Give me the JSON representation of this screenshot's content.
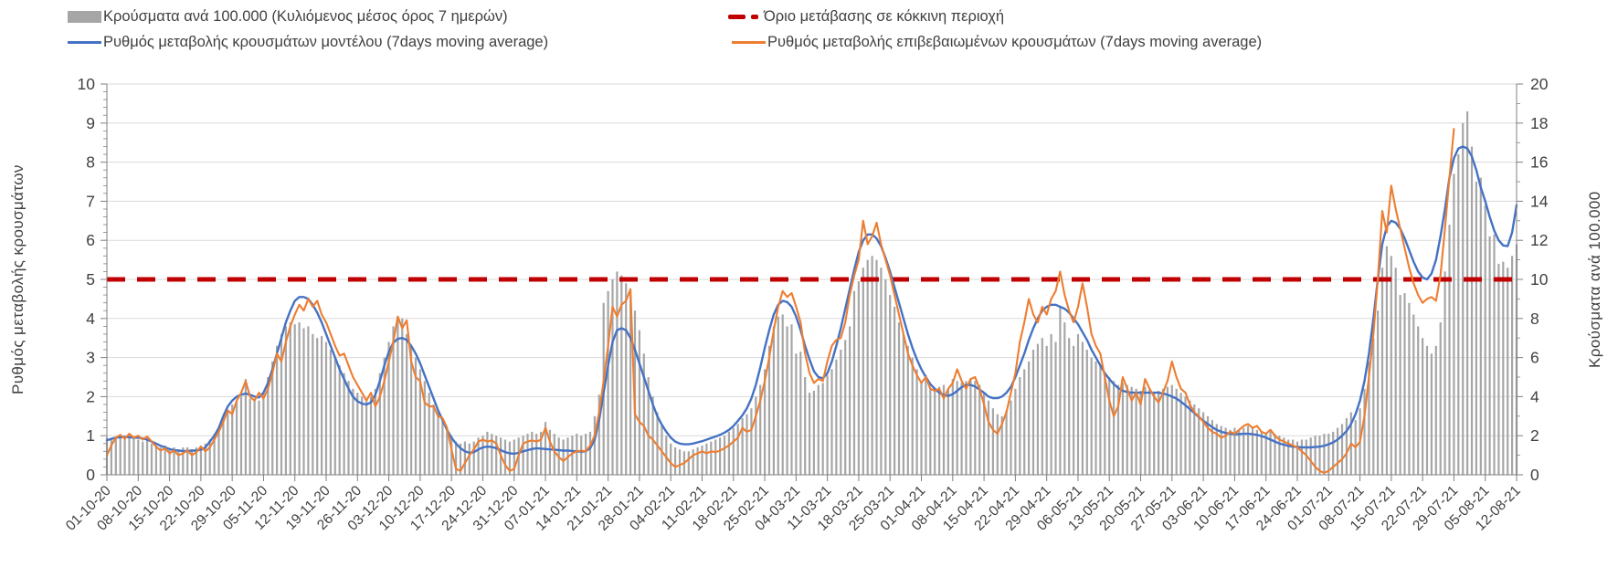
{
  "legend": {
    "items": [
      {
        "label": "Κρούσματα ανά 100.000 (Κυλιόμενος μέσος όρος 7 ημερών)",
        "swatch": "bar",
        "color": "#a6a6a6"
      },
      {
        "label": "Όριο μετάβασης σε κόκκινη περιοχή",
        "swatch": "dashed-line",
        "color": "#c00000"
      },
      {
        "label": "Ρυθμός μεταβολής κρουσμάτων μοντέλου (7days moving average)",
        "swatch": "line",
        "color": "#4472c4"
      },
      {
        "label": "Ρυθμός μεταβολής επιβεβαιωμένων κρουσμάτων (7days moving average)",
        "swatch": "line",
        "color": "#ed7d31"
      }
    ]
  },
  "chart_data": {
    "type": "combo bar+line, daily data 01-10-20 to 12-08-21",
    "grid": "horizontal gridlines at every left-axis integer, color #d9d9d9",
    "left_axis": {
      "title": "Ρυθμός μεταβολής κρουσμάτων",
      "min": 0,
      "max": 10,
      "tick_step": 1
    },
    "right_axis": {
      "title": "Κρούσματα ανά 100.000",
      "min": 0,
      "max": 20,
      "tick_step": 2
    },
    "threshold": {
      "label": "Όριο μετάβασης σε κόκκινη περιοχή",
      "value_left_axis": 5,
      "color": "#c00000"
    },
    "days_per_tick": 7,
    "x_tick_labels": [
      "01-10-20",
      "08-10-20",
      "15-10-20",
      "22-10-20",
      "29-10-20",
      "05-11-20",
      "12-11-20",
      "19-11-20",
      "26-11-20",
      "03-12-20",
      "10-12-20",
      "17-12-20",
      "24-12-20",
      "31-12-20",
      "07-01-21",
      "14-01-21",
      "21-01-21",
      "28-01-21",
      "04-02-21",
      "11-02-21",
      "18-02-21",
      "25-02-21",
      "04-03-21",
      "11-03-21",
      "18-03-21",
      "25-03-21",
      "01-04-21",
      "08-04-21",
      "15-04-21",
      "22-04-21",
      "29-04-21",
      "06-05-21",
      "13-05-21",
      "20-05-21",
      "27-05-21",
      "03-06-21",
      "10-06-21",
      "17-06-21",
      "24-06-21",
      "01-07-21",
      "08-07-21",
      "15-07-21",
      "22-07-21",
      "29-07-21",
      "05-08-21",
      "12-08-21"
    ],
    "series": [
      {
        "name": "Κρούσματα ανά 100.000 (Κυλιόμενος μέσος όρος 7 ημερών)",
        "type": "bar",
        "axis": "right",
        "color": "#a6a6a6",
        "values": [
          1.9,
          1.8,
          1.9,
          2.0,
          1.9,
          2.0,
          1.9,
          1.8,
          1.7,
          1.8,
          1.6,
          1.5,
          1.4,
          1.5,
          1.3,
          1.4,
          1.3,
          1.4,
          1.4,
          1.3,
          1.4,
          1.5,
          1.6,
          1.8,
          2.1,
          2.4,
          2.9,
          3.3,
          3.6,
          3.8,
          4.0,
          4.9,
          3.9,
          3.8,
          3.8,
          4.2,
          5.0,
          5.8,
          6.6,
          7.2,
          7.6,
          7.8,
          7.7,
          7.8,
          7.5,
          7.6,
          7.2,
          7.0,
          7.1,
          6.8,
          6.4,
          6.0,
          5.6,
          5.2,
          4.8,
          4.4,
          4.2,
          4.0,
          3.8,
          4.0,
          4.4,
          5.2,
          6.0,
          6.8,
          7.6,
          8.1,
          8.0,
          7.2,
          6.6,
          6.0,
          5.4,
          4.8,
          4.2,
          3.6,
          3.2,
          2.8,
          2.4,
          2.0,
          1.7,
          1.6,
          1.7,
          1.6,
          1.7,
          1.9,
          2.0,
          2.2,
          2.1,
          2.0,
          1.9,
          1.8,
          1.7,
          1.8,
          1.9,
          2.0,
          2.1,
          2.2,
          2.1,
          2.2,
          2.7,
          2.3,
          2.1,
          1.9,
          1.8,
          1.9,
          2.0,
          2.1,
          2.0,
          2.1,
          2.2,
          3.0,
          4.1,
          8.8,
          9.4,
          10.0,
          10.4,
          10.2,
          9.8,
          9.2,
          8.4,
          7.4,
          6.2,
          5.0,
          4.0,
          3.2,
          2.5,
          2.0,
          1.6,
          1.4,
          1.3,
          1.2,
          1.2,
          1.3,
          1.4,
          1.5,
          1.6,
          1.7,
          1.8,
          1.9,
          2.0,
          2.2,
          2.4,
          2.6,
          2.9,
          3.1,
          3.4,
          4.0,
          4.6,
          5.4,
          6.6,
          7.6,
          8.1,
          8.2,
          7.6,
          7.7,
          6.2,
          6.3,
          5.0,
          4.2,
          4.3,
          4.6,
          4.7,
          5.1,
          5.4,
          5.9,
          6.4,
          6.9,
          7.6,
          9.4,
          9.9,
          10.6,
          11.0,
          11.2,
          11.0,
          10.6,
          10.0,
          9.2,
          8.6,
          7.8,
          7.2,
          6.6,
          6.0,
          5.4,
          4.8,
          5.1,
          4.4,
          4.4,
          4.5,
          4.6,
          4.4,
          4.9,
          4.8,
          4.7,
          4.8,
          4.9,
          4.8,
          4.6,
          4.2,
          3.8,
          3.4,
          3.1,
          3.0,
          3.3,
          3.8,
          4.4,
          5.0,
          5.4,
          5.8,
          6.4,
          6.7,
          7.0,
          6.6,
          7.2,
          6.8,
          8.6,
          7.8,
          7.0,
          6.6,
          7.2,
          6.8,
          6.4,
          6.0,
          5.8,
          5.6,
          5.2,
          5.0,
          4.8,
          4.6,
          4.7,
          4.6,
          4.5,
          4.4,
          4.3,
          4.5,
          4.4,
          4.2,
          4.3,
          4.4,
          4.5,
          4.6,
          4.4,
          4.2,
          4.0,
          3.8,
          3.6,
          3.4,
          3.2,
          3.0,
          2.8,
          2.6,
          2.5,
          2.4,
          2.3,
          2.4,
          2.3,
          2.4,
          2.5,
          2.4,
          2.3,
          2.2,
          2.1,
          2.2,
          2.1,
          2.0,
          1.9,
          1.8,
          1.8,
          1.7,
          1.8,
          1.8,
          1.9,
          2.0,
          2.0,
          2.1,
          2.1,
          2.2,
          2.4,
          2.6,
          2.9,
          3.2,
          2.8,
          3.4,
          4.4,
          5.8,
          7.0,
          8.4,
          10.6,
          11.7,
          11.2,
          10.6,
          9.2,
          9.3,
          8.8,
          8.2,
          7.6,
          7.0,
          6.6,
          6.2,
          6.6,
          7.8,
          10.4,
          12.8,
          15.4,
          16.4,
          18.0,
          18.6,
          16.8,
          15.0,
          15.2,
          13.8,
          12.2,
          12.3,
          10.8,
          10.9,
          10.6,
          11.2,
          11.8
        ]
      },
      {
        "name": "Ρυθμός μεταβολής κρουσμάτων μοντέλου (7days moving average)",
        "type": "line",
        "axis": "left",
        "color": "#4472c4",
        "values": [
          0.88,
          0.92,
          0.95,
          0.96,
          0.97,
          0.96,
          0.95,
          0.95,
          0.93,
          0.9,
          0.85,
          0.8,
          0.74,
          0.7,
          0.66,
          0.63,
          0.62,
          0.61,
          0.61,
          0.62,
          0.62,
          0.64,
          0.7,
          0.85,
          1.0,
          1.2,
          1.5,
          1.75,
          1.9,
          2.0,
          2.05,
          2.08,
          2.05,
          2.0,
          1.98,
          2.1,
          2.35,
          2.7,
          3.1,
          3.5,
          3.9,
          4.2,
          4.45,
          4.55,
          4.55,
          4.5,
          4.35,
          4.15,
          3.9,
          3.6,
          3.3,
          3.0,
          2.7,
          2.45,
          2.2,
          2.0,
          1.88,
          1.82,
          1.8,
          1.85,
          2.05,
          2.4,
          2.8,
          3.15,
          3.38,
          3.48,
          3.5,
          3.45,
          3.3,
          3.1,
          2.85,
          2.55,
          2.25,
          1.95,
          1.65,
          1.4,
          1.15,
          0.95,
          0.8,
          0.68,
          0.6,
          0.56,
          0.58,
          0.65,
          0.7,
          0.72,
          0.71,
          0.68,
          0.63,
          0.58,
          0.55,
          0.54,
          0.56,
          0.6,
          0.63,
          0.66,
          0.68,
          0.67,
          0.66,
          0.65,
          0.64,
          0.63,
          0.62,
          0.62,
          0.61,
          0.6,
          0.59,
          0.6,
          0.68,
          0.9,
          1.4,
          2.1,
          2.8,
          3.4,
          3.7,
          3.75,
          3.7,
          3.5,
          3.2,
          2.85,
          2.5,
          2.15,
          1.8,
          1.5,
          1.28,
          1.1,
          0.95,
          0.85,
          0.8,
          0.78,
          0.78,
          0.8,
          0.83,
          0.86,
          0.9,
          0.94,
          0.98,
          1.02,
          1.08,
          1.15,
          1.25,
          1.38,
          1.52,
          1.7,
          1.95,
          2.3,
          2.75,
          3.25,
          3.7,
          4.1,
          4.35,
          4.45,
          4.42,
          4.3,
          4.05,
          3.7,
          3.3,
          2.95,
          2.65,
          2.5,
          2.47,
          2.6,
          2.9,
          3.3,
          3.75,
          4.25,
          4.75,
          5.25,
          5.7,
          6.0,
          6.15,
          6.15,
          6.05,
          5.85,
          5.55,
          5.2,
          4.8,
          4.4,
          4.0,
          3.6,
          3.25,
          2.95,
          2.7,
          2.5,
          2.32,
          2.2,
          2.1,
          2.04,
          2.02,
          2.06,
          2.15,
          2.24,
          2.3,
          2.3,
          2.26,
          2.18,
          2.1,
          2.0,
          1.96,
          1.96,
          2.0,
          2.1,
          2.25,
          2.5,
          2.8,
          3.1,
          3.45,
          3.75,
          4.0,
          4.2,
          4.3,
          4.35,
          4.35,
          4.3,
          4.25,
          4.15,
          4.0,
          3.85,
          3.65,
          3.45,
          3.2,
          3.0,
          2.8,
          2.6,
          2.45,
          2.32,
          2.22,
          2.15,
          2.12,
          2.1,
          2.1,
          2.1,
          2.1,
          2.1,
          2.1,
          2.1,
          2.08,
          2.05,
          2.0,
          1.95,
          1.87,
          1.78,
          1.68,
          1.58,
          1.48,
          1.38,
          1.3,
          1.22,
          1.15,
          1.1,
          1.07,
          1.05,
          1.04,
          1.04,
          1.05,
          1.05,
          1.04,
          1.02,
          0.99,
          0.95,
          0.9,
          0.85,
          0.8,
          0.77,
          0.74,
          0.72,
          0.71,
          0.7,
          0.7,
          0.7,
          0.71,
          0.72,
          0.74,
          0.78,
          0.83,
          0.9,
          1.0,
          1.12,
          1.3,
          1.55,
          1.9,
          2.4,
          3.1,
          4.0,
          5.0,
          5.9,
          6.35,
          6.5,
          6.45,
          6.3,
          6.05,
          5.75,
          5.45,
          5.2,
          5.05,
          5.0,
          5.15,
          5.5,
          6.1,
          6.8,
          7.6,
          8.1,
          8.35,
          8.4,
          8.35,
          8.15,
          7.8,
          7.35,
          7.0,
          6.6,
          6.25,
          6.0,
          5.87,
          5.85,
          6.2,
          6.9
        ]
      },
      {
        "name": "Ρυθμός μεταβολής επιβεβαιωμένων κρουσμάτων (7days moving average)",
        "type": "line",
        "axis": "left",
        "color": "#ed7d31",
        "values": [
          0.5,
          0.75,
          0.95,
          1.02,
          0.92,
          1.05,
          0.95,
          1.0,
          0.9,
          0.98,
          0.85,
          0.72,
          0.62,
          0.68,
          0.55,
          0.62,
          0.5,
          0.55,
          0.62,
          0.5,
          0.58,
          0.72,
          0.6,
          0.7,
          0.9,
          1.1,
          1.35,
          1.65,
          1.55,
          1.9,
          2.1,
          2.4,
          2.0,
          1.9,
          2.1,
          1.95,
          2.2,
          2.6,
          3.1,
          2.9,
          3.4,
          3.8,
          4.1,
          4.35,
          4.2,
          4.5,
          4.3,
          4.45,
          4.1,
          3.9,
          3.6,
          3.3,
          3.05,
          3.1,
          2.8,
          2.5,
          2.3,
          2.1,
          1.9,
          2.1,
          1.75,
          2.0,
          2.4,
          2.9,
          3.4,
          4.05,
          3.75,
          3.95,
          2.9,
          2.5,
          2.4,
          1.85,
          1.75,
          1.75,
          1.5,
          1.45,
          1.2,
          0.65,
          0.15,
          0.1,
          0.3,
          0.5,
          0.65,
          0.85,
          0.9,
          0.85,
          0.88,
          0.8,
          0.5,
          0.25,
          0.1,
          0.15,
          0.5,
          0.8,
          0.85,
          0.88,
          0.85,
          0.9,
          1.2,
          0.85,
          0.6,
          0.45,
          0.35,
          0.45,
          0.55,
          0.6,
          0.62,
          0.6,
          0.75,
          1.0,
          1.6,
          2.4,
          3.3,
          4.3,
          4.05,
          4.35,
          4.45,
          4.75,
          1.55,
          1.35,
          1.25,
          1.0,
          0.9,
          0.75,
          0.6,
          0.45,
          0.3,
          0.2,
          0.25,
          0.3,
          0.4,
          0.5,
          0.55,
          0.6,
          0.55,
          0.6,
          0.58,
          0.62,
          0.68,
          0.75,
          0.85,
          0.95,
          1.2,
          1.1,
          1.15,
          1.5,
          1.9,
          2.4,
          3.0,
          3.7,
          4.3,
          4.7,
          4.55,
          4.65,
          4.3,
          3.9,
          3.1,
          2.6,
          2.35,
          2.45,
          2.4,
          2.9,
          3.3,
          3.45,
          3.5,
          3.9,
          4.6,
          5.1,
          5.5,
          6.5,
          5.9,
          6.1,
          6.45,
          5.9,
          5.5,
          5.1,
          4.6,
          4.1,
          3.6,
          3.1,
          2.8,
          2.55,
          2.35,
          2.5,
          2.2,
          2.15,
          2.2,
          1.95,
          2.2,
          2.35,
          2.7,
          2.4,
          2.2,
          2.45,
          2.5,
          2.2,
          1.8,
          1.35,
          1.15,
          1.05,
          1.3,
          1.6,
          2.1,
          2.6,
          3.4,
          3.9,
          4.5,
          4.1,
          3.9,
          4.3,
          4.1,
          4.5,
          4.7,
          5.2,
          4.6,
          4.2,
          3.9,
          4.3,
          4.9,
          4.3,
          3.6,
          3.3,
          3.1,
          2.5,
          1.9,
          1.5,
          1.75,
          2.5,
          2.2,
          1.9,
          2.1,
          1.8,
          2.45,
          2.2,
          2.0,
          1.85,
          2.1,
          2.4,
          2.9,
          2.5,
          2.2,
          2.1,
          1.8,
          1.6,
          1.5,
          1.35,
          1.2,
          1.1,
          1.05,
          0.95,
          1.0,
          1.1,
          1.05,
          1.15,
          1.25,
          1.3,
          1.2,
          1.25,
          1.1,
          1.05,
          1.15,
          1.0,
          0.9,
          0.85,
          0.8,
          0.75,
          0.7,
          0.6,
          0.5,
          0.35,
          0.2,
          0.1,
          0.05,
          0.1,
          0.2,
          0.3,
          0.4,
          0.55,
          0.8,
          0.7,
          0.85,
          1.5,
          2.5,
          3.6,
          5.0,
          6.75,
          6.2,
          7.4,
          6.8,
          6.3,
          5.8,
          5.3,
          4.9,
          4.6,
          4.4,
          4.5,
          4.55,
          4.45,
          5.1,
          6.3,
          7.6,
          8.85,
          null,
          null,
          null,
          null,
          null,
          null,
          null,
          null,
          null,
          null,
          null,
          null,
          null,
          null
        ]
      }
    ]
  }
}
